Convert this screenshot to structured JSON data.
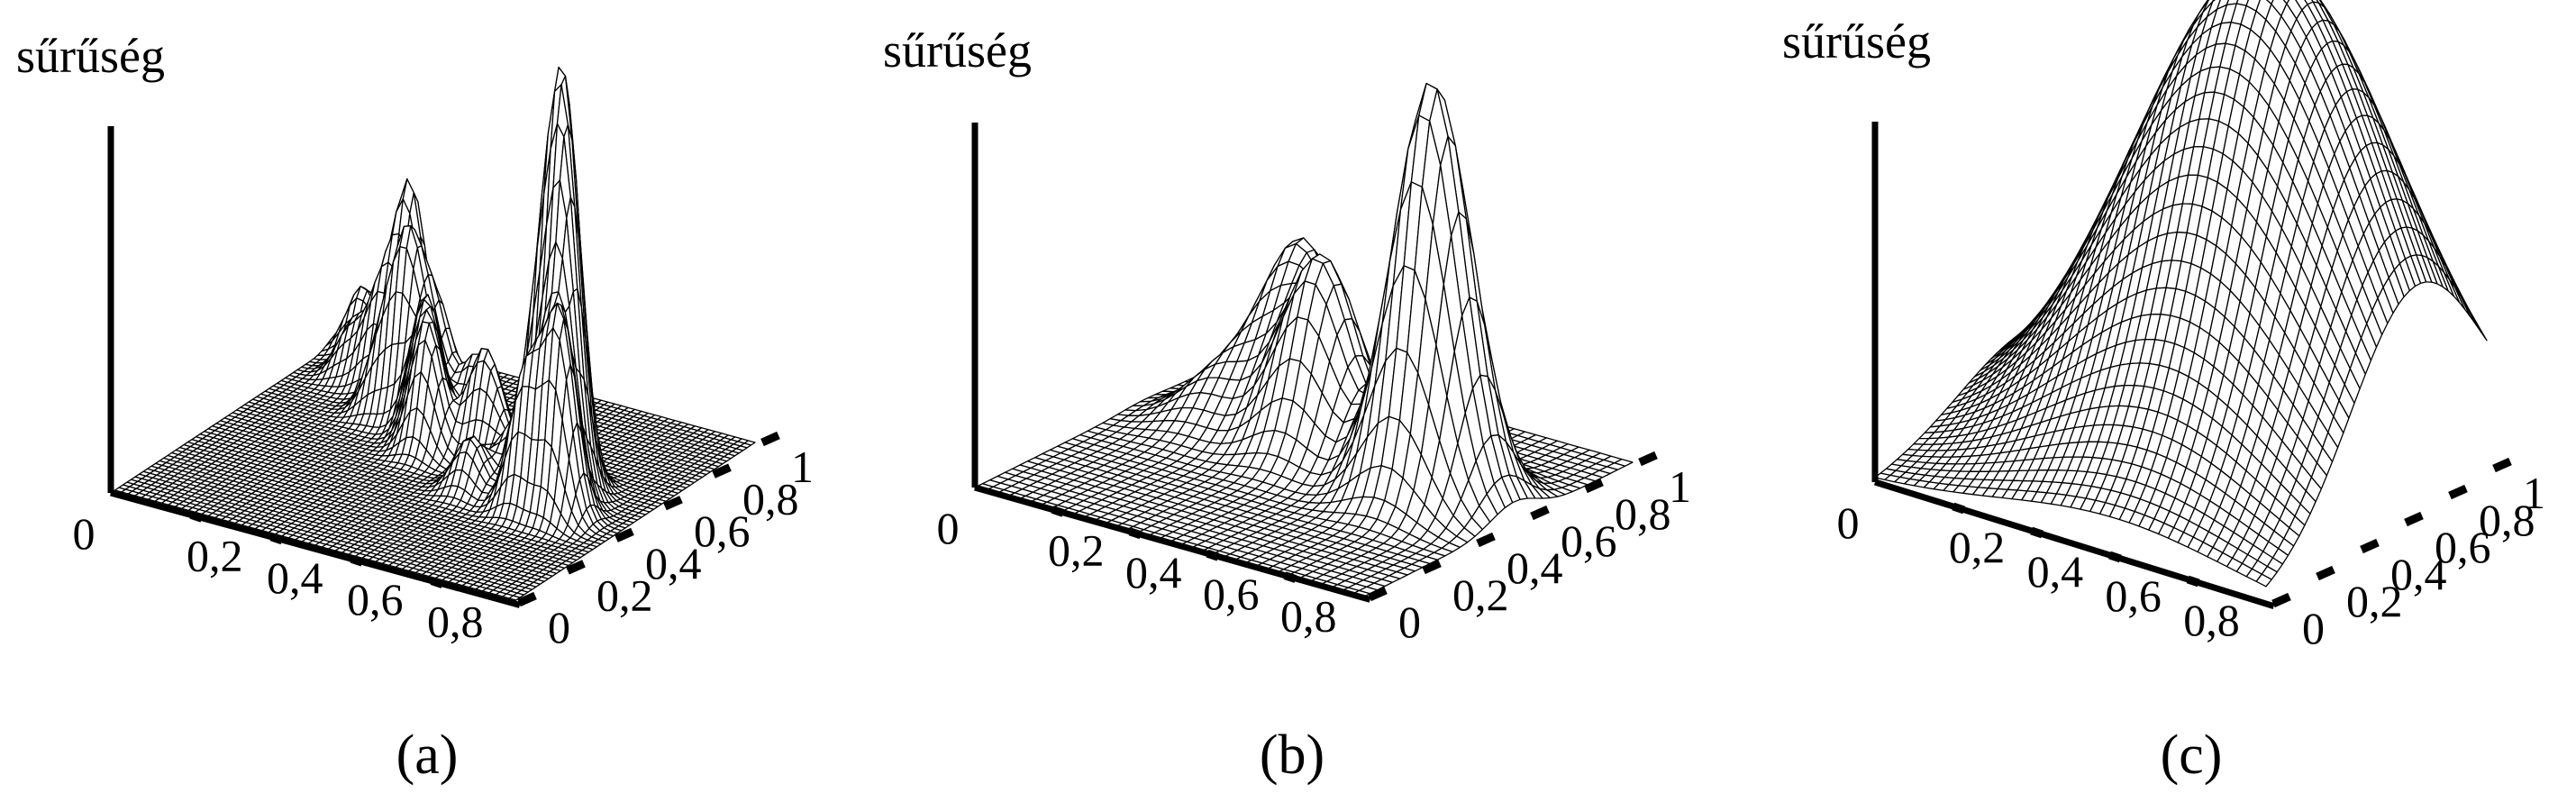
{
  "chart_data": [
    {
      "type": "surface",
      "panel": "a",
      "caption": "(a)",
      "zlabel": "sűrűség",
      "x_ticks": [
        "0",
        "0,2",
        "0,4",
        "0,6",
        "0,8"
      ],
      "y_ticks": [
        "0",
        "0,2",
        "0,4",
        "0,6",
        "0,8",
        "1"
      ],
      "xlim": [
        0,
        1
      ],
      "ylim": [
        0,
        1
      ],
      "grid_resolution": 60,
      "peaks": [
        {
          "x": 0.07,
          "y": 0.92,
          "height": 0.22
        },
        {
          "x": 0.17,
          "y": 0.89,
          "height": 0.26
        },
        {
          "x": 0.12,
          "y": 0.8,
          "height": 0.18
        },
        {
          "x": 0.2,
          "y": 0.78,
          "height": 0.3
        },
        {
          "x": 0.24,
          "y": 0.84,
          "height": 0.62
        },
        {
          "x": 0.3,
          "y": 0.76,
          "height": 0.4
        },
        {
          "x": 0.27,
          "y": 0.67,
          "height": 0.24
        },
        {
          "x": 0.33,
          "y": 0.68,
          "height": 0.52
        },
        {
          "x": 0.38,
          "y": 0.73,
          "height": 0.3
        },
        {
          "x": 0.41,
          "y": 0.62,
          "height": 0.42
        },
        {
          "x": 0.45,
          "y": 0.56,
          "height": 0.36
        },
        {
          "x": 0.48,
          "y": 0.72,
          "height": 0.25
        },
        {
          "x": 0.55,
          "y": 0.62,
          "height": 0.3
        },
        {
          "x": 0.6,
          "y": 0.6,
          "height": 0.15
        },
        {
          "x": 0.63,
          "y": 0.44,
          "height": 0.18
        },
        {
          "x": 0.67,
          "y": 0.53,
          "height": 0.14
        },
        {
          "x": 0.75,
          "y": 0.53,
          "height": 0.55
        },
        {
          "x": 0.79,
          "y": 0.57,
          "height": 1.0
        },
        {
          "x": 0.82,
          "y": 0.51,
          "height": 0.88
        },
        {
          "x": 0.86,
          "y": 0.43,
          "height": 0.62
        },
        {
          "x": 0.78,
          "y": 0.42,
          "height": 0.45
        }
      ]
    },
    {
      "type": "surface",
      "panel": "b",
      "caption": "(b)",
      "zlabel": "sűrűség",
      "x_ticks": [
        "0",
        "0,2",
        "0,4",
        "0,6",
        "0,8"
      ],
      "y_ticks": [
        "0",
        "0,2",
        "0,4",
        "0,6",
        "0,8",
        "1"
      ],
      "xlim": [
        0,
        1
      ],
      "ylim": [
        0,
        1
      ],
      "grid_resolution": 36,
      "peaks": [
        {
          "x": 0.3,
          "y": 0.78,
          "height": 0.4
        },
        {
          "x": 0.46,
          "y": 0.62,
          "height": 0.46
        },
        {
          "x": 0.79,
          "y": 0.56,
          "height": 1.0
        },
        {
          "x": 0.2,
          "y": 0.62,
          "height": 0.12
        }
      ]
    },
    {
      "type": "surface",
      "panel": "c",
      "caption": "(c)",
      "zlabel": "sűrűség",
      "x_ticks": [
        "0",
        "0,2",
        "0,4",
        "0,6",
        "0,8"
      ],
      "y_ticks": [
        "0",
        "0,2",
        "0,4",
        "0,6",
        "0,8",
        "1"
      ],
      "xlim": [
        0,
        1
      ],
      "ylim": [
        0,
        1
      ],
      "grid_resolution": 40,
      "peaks": [
        {
          "x": 0.62,
          "y": 0.68,
          "height": 1.0
        }
      ]
    }
  ]
}
